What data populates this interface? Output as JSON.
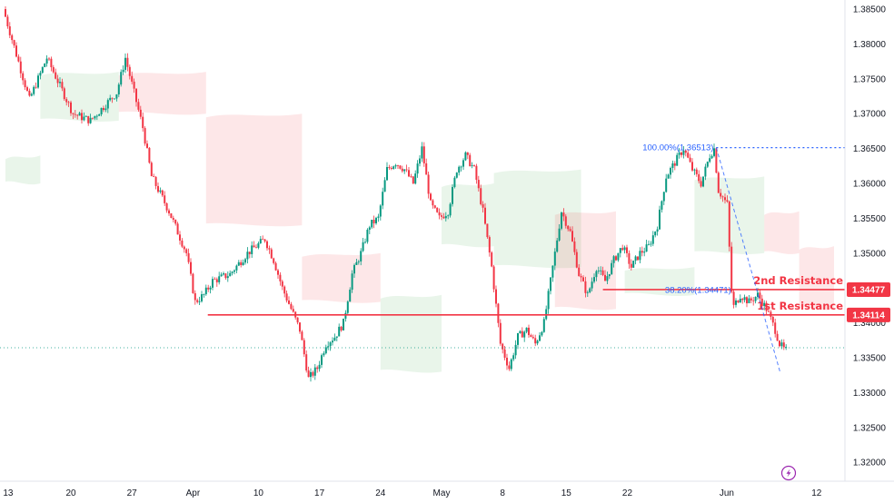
{
  "chart_data": {
    "type": "candlestick",
    "y_axis": {
      "range": [
        1.3155,
        1.3865
      ],
      "ticks": [
        "1.38500",
        "1.38000",
        "1.37500",
        "1.37000",
        "1.36500",
        "1.36000",
        "1.35500",
        "1.35000",
        "1.34500",
        "1.34000",
        "1.33500",
        "1.33000",
        "1.32500",
        "1.32000"
      ]
    },
    "x_axis": {
      "range": [
        0,
        90
      ],
      "ticks": [
        {
          "label": "13",
          "t": 0.3
        },
        {
          "label": "20",
          "t": 7.5
        },
        {
          "label": "27",
          "t": 14.5
        },
        {
          "label": "Apr",
          "t": 21.5
        },
        {
          "label": "10",
          "t": 29
        },
        {
          "label": "17",
          "t": 36
        },
        {
          "label": "24",
          "t": 43
        },
        {
          "label": "May",
          "t": 50
        },
        {
          "label": "8",
          "t": 57
        },
        {
          "label": "15",
          "t": 64.3
        },
        {
          "label": "22",
          "t": 71.3
        },
        {
          "label": "Jun",
          "t": 82.7
        },
        {
          "label": "12",
          "t": 93
        }
      ]
    },
    "levels": [
      {
        "label": "2nd Resistance",
        "value": 1.34477,
        "badge": "1.34477",
        "start": 68.5,
        "color": "#f23645"
      },
      {
        "label": "1st Resistance",
        "value": 1.34114,
        "badge": "1.34114",
        "start": 23.2,
        "color": "#f23645"
      }
    ],
    "fibonacci": [
      {
        "label": "100.00%(1.36513)",
        "value": 1.36513,
        "t_from": 81.5,
        "t_to": 97
      },
      {
        "label": "38.20%(1.34471)",
        "value": 1.34471,
        "t_from": 83,
        "t_to": 88
      }
    ],
    "fib_line": {
      "from": {
        "t": 81.5,
        "v": 1.36513
      },
      "to": {
        "t": 88.8,
        "v": 1.333
      }
    },
    "current_price": 1.33605,
    "ohlc_anchors": [
      [
        0,
        1.385
      ],
      [
        3,
        1.372
      ],
      [
        5,
        1.378
      ],
      [
        8,
        1.37
      ],
      [
        10,
        1.369
      ],
      [
        13,
        1.373
      ],
      [
        14,
        1.378
      ],
      [
        15,
        1.373
      ],
      [
        16,
        1.368
      ],
      [
        17,
        1.361
      ],
      [
        19,
        1.356
      ],
      [
        21,
        1.35
      ],
      [
        22,
        1.343
      ],
      [
        23,
        1.344
      ],
      [
        24,
        1.346
      ],
      [
        26,
        1.347
      ],
      [
        28,
        1.35
      ],
      [
        30,
        1.352
      ],
      [
        31,
        1.349
      ],
      [
        32,
        1.345
      ],
      [
        33,
        1.342
      ],
      [
        34,
        1.339
      ],
      [
        35,
        1.332
      ],
      [
        36,
        1.3335
      ],
      [
        37,
        1.337
      ],
      [
        38,
        1.338
      ],
      [
        39,
        1.34
      ],
      [
        40,
        1.347
      ],
      [
        41,
        1.35
      ],
      [
        42,
        1.354
      ],
      [
        43,
        1.355
      ],
      [
        44,
        1.362
      ],
      [
        45,
        1.363
      ],
      [
        46,
        1.362
      ],
      [
        47,
        1.36
      ],
      [
        48,
        1.365
      ],
      [
        49,
        1.357
      ],
      [
        50,
        1.355
      ],
      [
        51,
        1.356
      ],
      [
        52,
        1.362
      ],
      [
        53,
        1.364
      ],
      [
        54,
        1.362
      ],
      [
        55,
        1.356
      ],
      [
        56,
        1.348
      ],
      [
        57,
        1.337
      ],
      [
        58,
        1.3335
      ],
      [
        59,
        1.338
      ],
      [
        60,
        1.339
      ],
      [
        61,
        1.337
      ],
      [
        62,
        1.34
      ],
      [
        63,
        1.348
      ],
      [
        64,
        1.356
      ],
      [
        65,
        1.353
      ],
      [
        66,
        1.347
      ],
      [
        67,
        1.344
      ],
      [
        68,
        1.348
      ],
      [
        69,
        1.346
      ],
      [
        70,
        1.349
      ],
      [
        71,
        1.351
      ],
      [
        72,
        1.348
      ],
      [
        73,
        1.35
      ],
      [
        74,
        1.351
      ],
      [
        75,
        1.354
      ],
      [
        76,
        1.361
      ],
      [
        77,
        1.363
      ],
      [
        78,
        1.365
      ],
      [
        79,
        1.362
      ],
      [
        80,
        1.36
      ],
      [
        81,
        1.364
      ],
      [
        81.5,
        1.365
      ],
      [
        82,
        1.359
      ],
      [
        83,
        1.357
      ],
      [
        83.6,
        1.342
      ],
      [
        84.5,
        1.344
      ],
      [
        85.5,
        1.343
      ],
      [
        86.5,
        1.344
      ],
      [
        87.5,
        1.342
      ],
      [
        88.5,
        1.339
      ],
      [
        89,
        1.337
      ],
      [
        89.6,
        1.33605
      ]
    ],
    "ichimoku_cloud": [
      {
        "from": 0,
        "to": 4,
        "top": 1.364,
        "bottom": 1.36,
        "color": "#4caf50"
      },
      {
        "from": 4,
        "to": 13,
        "top": 1.376,
        "bottom": 1.369,
        "color": "#4caf50"
      },
      {
        "from": 13,
        "to": 23,
        "top": 1.376,
        "bottom": 1.37,
        "color": "#f23645"
      },
      {
        "from": 23,
        "to": 34,
        "top": 1.37,
        "bottom": 1.354,
        "color": "#f23645"
      },
      {
        "from": 34,
        "to": 43,
        "top": 1.35,
        "bottom": 1.343,
        "color": "#f23645"
      },
      {
        "from": 43,
        "to": 50,
        "top": 1.344,
        "bottom": 1.333,
        "color": "#4caf50"
      },
      {
        "from": 50,
        "to": 56,
        "top": 1.36,
        "bottom": 1.351,
        "color": "#4caf50"
      },
      {
        "from": 56,
        "to": 66,
        "top": 1.362,
        "bottom": 1.348,
        "color": "#4caf50"
      },
      {
        "from": 63,
        "to": 70,
        "top": 1.356,
        "bottom": 1.342,
        "color": "#f23645"
      },
      {
        "from": 71,
        "to": 79,
        "top": 1.348,
        "bottom": 1.344,
        "color": "#4caf50"
      },
      {
        "from": 79,
        "to": 87,
        "top": 1.361,
        "bottom": 1.35,
        "color": "#4caf50"
      },
      {
        "from": 87,
        "to": 91,
        "top": 1.356,
        "bottom": 1.35,
        "color": "#f23645"
      },
      {
        "from": 91,
        "to": 95,
        "top": 1.351,
        "bottom": 1.342,
        "color": "#f23645"
      }
    ],
    "colors": {
      "up": "#089981",
      "down": "#f23645",
      "level": "#f23645",
      "fib": "#2962ff",
      "grid": "#e0e3eb"
    }
  },
  "ui": {
    "lightning_icon": "lightning-icon"
  }
}
